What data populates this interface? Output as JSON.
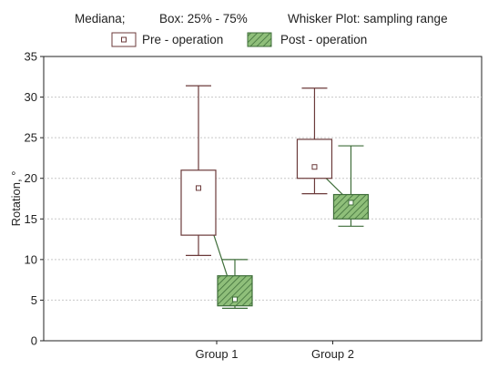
{
  "legend": {
    "header_median": "Mediana;",
    "header_box": "Box: 25% - 75%",
    "header_whisker": "Whisker Plot: sampling range"
  },
  "chart_data": {
    "type": "boxplot",
    "categories": [
      "Group 1",
      "Group 2"
    ],
    "ylabel": "Rotation, °",
    "xlabel": "",
    "ylim": [
      0,
      35
    ],
    "yticks": [
      0,
      5,
      10,
      15,
      20,
      25,
      30,
      35
    ],
    "grid": true,
    "legend_position": "top",
    "series": [
      {
        "name": "Pre - operation",
        "color": "#6b3a3a",
        "fill": "#ffffff",
        "boxes": [
          {
            "category": "Group 1",
            "min": 10.5,
            "q1": 13,
            "median": 18.8,
            "q3": 21,
            "max": 31.4
          },
          {
            "category": "Group 2",
            "min": 18.1,
            "q1": 20,
            "median": 21.4,
            "q3": 24.8,
            "max": 31.1
          }
        ]
      },
      {
        "name": "Post - operation",
        "color": "#3f6e3a",
        "fill": "#7fae6a",
        "hatched": true,
        "boxes": [
          {
            "category": "Group 1",
            "min": 4,
            "q1": 4.3,
            "median": 5.1,
            "q3": 8,
            "max": 10
          },
          {
            "category": "Group 2",
            "min": 14.1,
            "q1": 15,
            "median": 17,
            "q3": 18,
            "max": 24
          }
        ]
      }
    ]
  }
}
